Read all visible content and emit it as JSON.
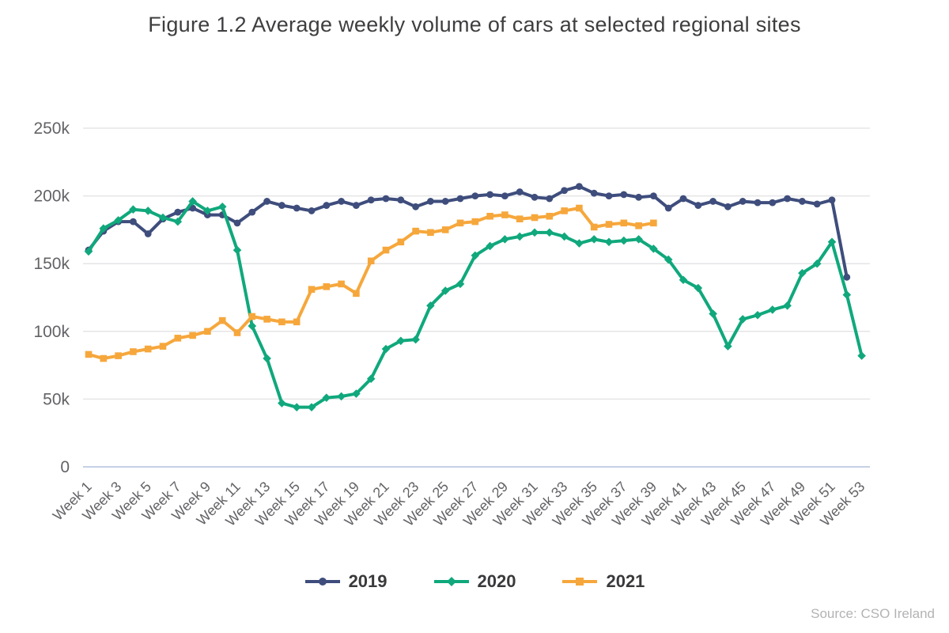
{
  "title": "Figure 1.2 Average weekly volume of cars at selected regional sites",
  "source_note": "Source: CSO Ireland",
  "colors": {
    "series_2019": "#3e4d7c",
    "series_2020": "#10a87c",
    "series_2021": "#f6a73c",
    "gridline": "#e5e5e7",
    "axis_line": "#c5d0e6",
    "tick_label": "#636367",
    "title_text": "#3e3e40",
    "legend_text": "#3a3a3c",
    "source_text": "#b3b3b5"
  },
  "chart_data": {
    "type": "line",
    "title": "Figure 1.2 Average weekly volume of cars at selected regional sites",
    "xlabel": "",
    "ylabel": "",
    "ylim": [
      0,
      250000
    ],
    "y_ticks": [
      0,
      50000,
      100000,
      150000,
      200000,
      250000
    ],
    "y_tick_labels": [
      "0",
      "50k",
      "100k",
      "150k",
      "200k",
      "250k"
    ],
    "x_tick_step": 2,
    "grid": "horizontal gridlines on",
    "legend_position": "bottom center",
    "categories": [
      "Week 1",
      "Week 2",
      "Week 3",
      "Week 4",
      "Week 5",
      "Week 6",
      "Week 7",
      "Week 8",
      "Week 9",
      "Week 10",
      "Week 11",
      "Week 12",
      "Week 13",
      "Week 14",
      "Week 15",
      "Week 16",
      "Week 17",
      "Week 18",
      "Week 19",
      "Week 20",
      "Week 21",
      "Week 22",
      "Week 23",
      "Week 24",
      "Week 25",
      "Week 26",
      "Week 27",
      "Week 28",
      "Week 29",
      "Week 30",
      "Week 31",
      "Week 32",
      "Week 33",
      "Week 34",
      "Week 35",
      "Week 36",
      "Week 37",
      "Week 38",
      "Week 39",
      "Week 40",
      "Week 41",
      "Week 42",
      "Week 43",
      "Week 44",
      "Week 45",
      "Week 46",
      "Week 47",
      "Week 48",
      "Week 49",
      "Week 50",
      "Week 51",
      "Week 52",
      "Week 53"
    ],
    "series": [
      {
        "name": "2019",
        "color": "#3e4d7c",
        "marker": "circle",
        "values": [
          160000,
          174000,
          181000,
          181000,
          172000,
          183000,
          188000,
          191000,
          186000,
          186000,
          180000,
          188000,
          196000,
          193000,
          191000,
          189000,
          193000,
          196000,
          193000,
          197000,
          198000,
          197000,
          192000,
          196000,
          196000,
          198000,
          200000,
          201000,
          200000,
          203000,
          199000,
          198000,
          204000,
          207000,
          202000,
          200000,
          201000,
          199000,
          200000,
          191000,
          198000,
          193000,
          196000,
          192000,
          196000,
          195000,
          195000,
          198000,
          196000,
          194000,
          197000,
          140000
        ]
      },
      {
        "name": "2020",
        "color": "#10a87c",
        "marker": "diamond",
        "values": [
          159000,
          176000,
          182000,
          190000,
          189000,
          184000,
          181000,
          196000,
          189000,
          192000,
          160000,
          104000,
          80000,
          47000,
          44000,
          44000,
          51000,
          52000,
          54000,
          65000,
          87000,
          93000,
          94000,
          119000,
          130000,
          135000,
          156000,
          163000,
          168000,
          170000,
          173000,
          173000,
          170000,
          165000,
          168000,
          166000,
          167000,
          168000,
          161000,
          153000,
          138000,
          132000,
          113000,
          89000,
          109000,
          112000,
          116000,
          119000,
          143000,
          150000,
          166000,
          127000,
          82000
        ]
      },
      {
        "name": "2021",
        "color": "#f6a73c",
        "marker": "square",
        "values": [
          83000,
          80000,
          82000,
          85000,
          87000,
          89000,
          95000,
          97000,
          100000,
          108000,
          99000,
          111000,
          109000,
          107000,
          107000,
          131000,
          133000,
          135000,
          128000,
          152000,
          160000,
          166000,
          174000,
          173000,
          175000,
          180000,
          181000,
          185000,
          186000,
          183000,
          184000,
          185000,
          189000,
          191000,
          177000,
          179000,
          180000,
          178000,
          180000
        ]
      }
    ]
  }
}
